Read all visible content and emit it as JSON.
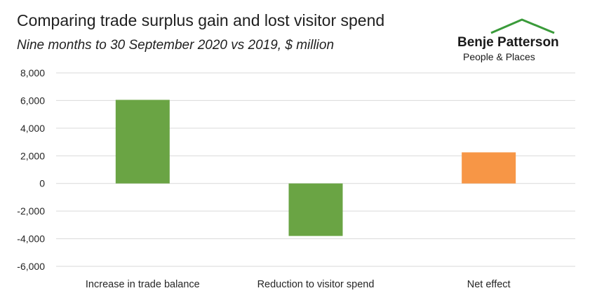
{
  "header": {
    "title": "Comparing trade surplus gain and lost visitor spend",
    "subtitle": "Nine months to 30 September 2020 vs 2019, $ million"
  },
  "logo": {
    "name": "Benje Patterson",
    "tagline": "People & Places",
    "roof_color": "#3a9b3a"
  },
  "chart_data": {
    "type": "bar",
    "categories": [
      "Increase in trade balance",
      "Reduction to visitor spend",
      "Net effect"
    ],
    "values": [
      6050,
      -3800,
      2250
    ],
    "colors": [
      "#6aa444",
      "#6aa444",
      "#f79646"
    ],
    "ylim": [
      -6000,
      8000
    ],
    "yticks": [
      8000,
      6000,
      4000,
      2000,
      0,
      -2000,
      -4000,
      -6000
    ],
    "ytick_labels": [
      "8,000",
      "6,000",
      "4,000",
      "2,000",
      "0",
      "-2,000",
      "-4,000",
      "-6,000"
    ],
    "grid": true,
    "legend": "none",
    "xlabel": "",
    "ylabel": ""
  }
}
